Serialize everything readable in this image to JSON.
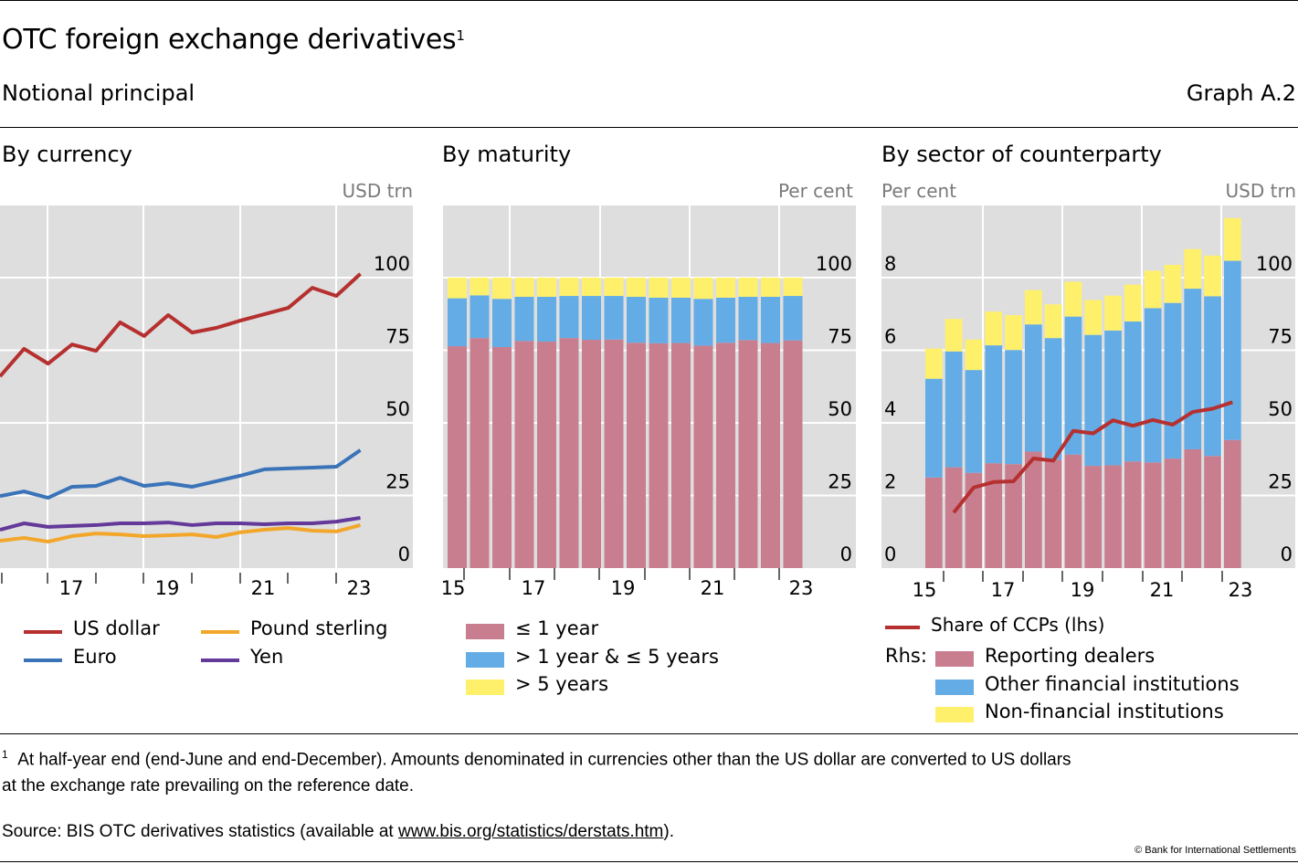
{
  "header": {
    "title": "OTC foreign exchange derivatives",
    "title_footnote_mark": "1",
    "subtitle": "Notional principal",
    "graph_id": "Graph A.2"
  },
  "panels": {
    "currency": {
      "title": "By currency",
      "unit": "USD trn"
    },
    "maturity": {
      "title": "By maturity",
      "unit": "Per cent"
    },
    "sector": {
      "title": "By sector of counterparty",
      "unit_left": "Per cent",
      "unit_right": "USD trn"
    }
  },
  "legends": {
    "currency": [
      {
        "label": "US dollar",
        "color": "#b5302f"
      },
      {
        "label": "Pound sterling",
        "color": "#f2a72b"
      },
      {
        "label": "Euro",
        "color": "#3a73b8"
      },
      {
        "label": "Yen",
        "color": "#63399a"
      }
    ],
    "maturity": [
      {
        "label": "≤ 1 year",
        "color": "#c97e90"
      },
      {
        "label": "> 1 year & ≤ 5 years",
        "color": "#64ace5"
      },
      {
        "label": "> 5 years",
        "color": "#fff06c"
      }
    ],
    "sector": {
      "line": {
        "label": "Share of CCPs (lhs)",
        "color": "#b5302f"
      },
      "rhs_prefix": "Rhs:",
      "bars": [
        {
          "label": "Reporting dealers",
          "color": "#c97e90"
        },
        {
          "label": "Other financial institutions",
          "color": "#64ace5"
        },
        {
          "label": "Non-financial institutions",
          "color": "#fff06c"
        }
      ]
    }
  },
  "footer": {
    "footnote_mark": "1",
    "footnote_line1": "At half-year end (end-June and end-December). Amounts denominated in currencies other than the US dollar are converted to US dollars",
    "footnote_line2": "at the exchange rate prevailing on the reference date.",
    "source_prefix": "Source: BIS OTC derivatives statistics (available at ",
    "source_link": "www.bis.org/statistics/derstats.htm",
    "source_suffix": ").",
    "copyright": "© Bank for International Settlements"
  },
  "chart_data": [
    {
      "id": "currency",
      "type": "line",
      "title": "By currency",
      "ylabel": "USD trn",
      "ylim": [
        0,
        115
      ],
      "yticks": [
        0,
        25,
        50,
        75,
        100
      ],
      "x": [
        "2015 H2",
        "2016 H1",
        "2016 H2",
        "2017 H1",
        "2017 H2",
        "2018 H1",
        "2018 H2",
        "2019 H1",
        "2019 H2",
        "2020 H1",
        "2020 H2",
        "2021 H1",
        "2021 H2",
        "2022 H1",
        "2022 H2",
        "2023 H1"
      ],
      "xtick_labels": [
        "17",
        "19",
        "21",
        "23"
      ],
      "grid": true,
      "series": [
        {
          "name": "US dollar",
          "color": "#b5302f",
          "values": [
            66.0,
            75.5,
            70.4,
            77.0,
            74.8,
            84.6,
            79.9,
            87.1,
            81.1,
            82.7,
            85.2,
            87.4,
            89.6,
            96.5,
            93.7,
            101.3
          ]
        },
        {
          "name": "Euro",
          "color": "#3a73b8",
          "values": [
            24.8,
            26.4,
            24.2,
            28.0,
            28.3,
            31.1,
            28.3,
            29.2,
            28.0,
            29.9,
            31.8,
            34.0,
            34.3,
            34.6,
            34.9,
            40.6
          ]
        },
        {
          "name": "Pound sterling",
          "color": "#f2a72b",
          "values": [
            9.4,
            10.4,
            9.1,
            11.0,
            11.9,
            11.6,
            11.0,
            11.3,
            11.6,
            10.7,
            12.3,
            13.2,
            13.8,
            12.9,
            12.6,
            14.8
          ]
        },
        {
          "name": "Yen",
          "color": "#63399a",
          "values": [
            13.2,
            15.4,
            14.2,
            14.5,
            14.8,
            15.4,
            15.4,
            15.7,
            14.8,
            15.4,
            15.4,
            15.1,
            15.4,
            15.4,
            16.0,
            17.3
          ]
        }
      ],
      "legend_position": "bottom"
    },
    {
      "id": "maturity",
      "type": "bar",
      "stacked": true,
      "title": "By maturity",
      "ylabel": "Per cent",
      "ylim": [
        0,
        115
      ],
      "yticks": [
        0,
        25,
        50,
        75,
        100
      ],
      "categories": [
        "2015 H2",
        "2016 H1",
        "2016 H2",
        "2017 H1",
        "2017 H2",
        "2018 H1",
        "2018 H2",
        "2019 H1",
        "2019 H2",
        "2020 H1",
        "2020 H2",
        "2021 H1",
        "2021 H2",
        "2022 H1",
        "2022 H2",
        "2023 H1"
      ],
      "xtick_labels": [
        "15",
        "17",
        "19",
        "21",
        "23"
      ],
      "grid": true,
      "series": [
        {
          "name": "≤ 1 year",
          "color": "#c97e90",
          "values": [
            76.4,
            79.2,
            76.1,
            78.2,
            78.0,
            79.2,
            78.6,
            78.7,
            77.6,
            77.4,
            77.5,
            76.6,
            77.6,
            78.5,
            77.5,
            78.4
          ]
        },
        {
          "name": "> 1 year & ≤ 5 years",
          "color": "#64ace5",
          "values": [
            16.5,
            14.7,
            16.6,
            15.2,
            15.4,
            14.5,
            15.1,
            15.0,
            15.8,
            15.7,
            15.6,
            16.1,
            15.5,
            14.9,
            15.9,
            15.3
          ]
        },
        {
          "name": "> 5 years",
          "color": "#fff06c",
          "values": [
            7.1,
            6.1,
            7.3,
            6.6,
            6.6,
            6.3,
            6.3,
            6.3,
            6.6,
            6.9,
            6.9,
            7.3,
            6.9,
            6.6,
            6.6,
            6.3
          ]
        }
      ],
      "legend_position": "bottom"
    },
    {
      "id": "sector",
      "type": "bar",
      "stacked": true,
      "title": "By sector of counterparty",
      "ylabel_left": "Per cent",
      "ylabel_right": "USD trn",
      "ylim_left": [
        0,
        9.2
      ],
      "yticks_left": [
        0,
        2,
        4,
        6,
        8
      ],
      "ylim_right": [
        0,
        115
      ],
      "yticks_right": [
        0,
        25,
        50,
        75,
        100
      ],
      "categories": [
        "2015 H2",
        "2016 H1",
        "2016 H2",
        "2017 H1",
        "2017 H2",
        "2018 H1",
        "2018 H2",
        "2019 H1",
        "2019 H2",
        "2020 H1",
        "2020 H2",
        "2021 H1",
        "2021 H2",
        "2022 H1",
        "2022 H2",
        "2023 H1"
      ],
      "xtick_labels": [
        "15",
        "17",
        "19",
        "21",
        "23"
      ],
      "grid": true,
      "series": [
        {
          "name": "Reporting dealers",
          "axis": "right",
          "color": "#c97e90",
          "values": [
            31.2,
            34.7,
            32.8,
            36.1,
            35.8,
            40.1,
            37.3,
            39.1,
            35.2,
            35.4,
            36.7,
            36.4,
            37.7,
            40.9,
            38.6,
            44.1
          ]
        },
        {
          "name": "Other financial institutions",
          "axis": "right",
          "color": "#64ace5",
          "values": [
            34.0,
            39.9,
            35.4,
            40.6,
            39.3,
            43.8,
            41.9,
            47.5,
            45.1,
            46.4,
            48.2,
            53.1,
            53.6,
            55.3,
            55.0,
            61.7
          ]
        },
        {
          "name": "Non-financial institutions",
          "axis": "right",
          "color": "#fff06c",
          "values": [
            10.4,
            11.2,
            10.5,
            11.6,
            12.0,
            11.8,
            11.6,
            12.0,
            12.0,
            12.0,
            12.7,
            12.9,
            13.1,
            13.6,
            14.0,
            14.7
          ]
        },
        {
          "name": "Share of CCPs (lhs)",
          "axis": "left",
          "type": "line",
          "color": "#b5302f",
          "values": [
            null,
            1.53,
            2.22,
            2.37,
            2.39,
            3.02,
            2.96,
            3.78,
            3.71,
            4.07,
            3.92,
            4.08,
            3.95,
            4.3,
            4.39,
            4.57
          ]
        }
      ],
      "legend_position": "bottom"
    }
  ]
}
